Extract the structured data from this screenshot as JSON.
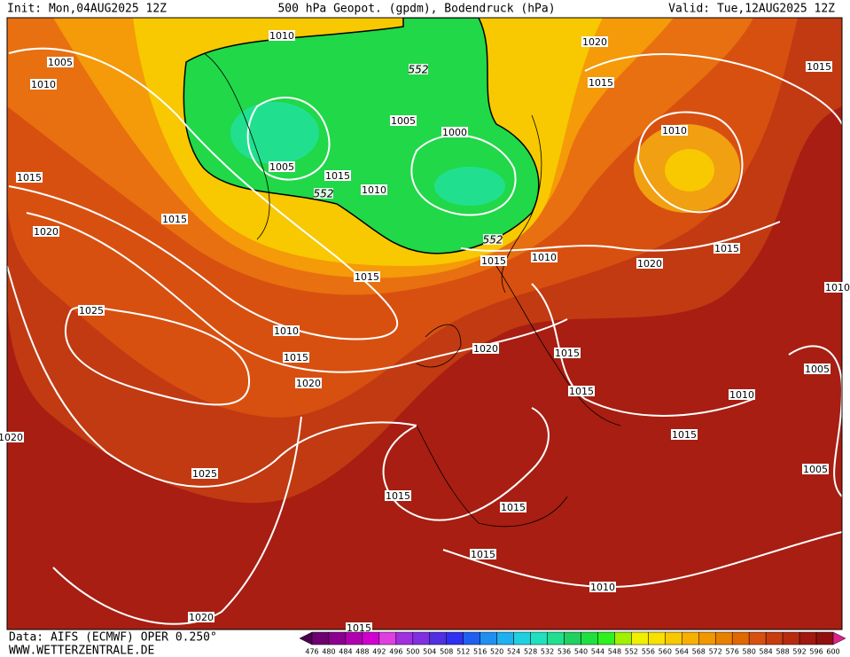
{
  "header": {
    "init": "Init: Mon,04AUG2025 12Z",
    "title": "500 hPa Geopot. (gpdm), Bodendruck (hPa)",
    "valid": "Valid: Tue,12AUG2025 12Z"
  },
  "footer": {
    "data_source": "Data: AIFS (ECMWF) OPER 0.250°",
    "website": "WWW.WETTERZENTRALE.DE"
  },
  "isobar_labels": [
    1010,
    1005,
    1010,
    1020,
    1015,
    1015,
    1005,
    1000,
    1010,
    1005,
    1015,
    1010,
    1015,
    1015,
    1020,
    1015,
    1010,
    1015,
    1020,
    1015,
    1010,
    1025,
    1010,
    1015,
    1020,
    1015,
    1005,
    1020,
    1015,
    1010,
    1015,
    1020,
    1025,
    1005,
    1015,
    1015,
    1015,
    1010,
    1020,
    1015
  ],
  "geopotential_labels": [
    552,
    552,
    552
  ],
  "colorbar": {
    "levels": [
      476,
      480,
      484,
      488,
      492,
      496,
      500,
      504,
      508,
      512,
      516,
      520,
      524,
      528,
      532,
      536,
      540,
      544,
      548,
      552,
      556,
      560,
      564,
      568,
      572,
      576,
      580,
      584,
      588,
      592,
      596,
      600
    ],
    "colors": [
      "#4b0050",
      "#6e0070",
      "#8c0090",
      "#b000b0",
      "#d000d0",
      "#e040e0",
      "#a030e0",
      "#8030e0",
      "#5030e0",
      "#3030f0",
      "#2060f0",
      "#2090f0",
      "#20b0f0",
      "#20d0e0",
      "#20e0c0",
      "#20e090",
      "#20d060",
      "#20e040",
      "#30f020",
      "#a0f000",
      "#f0f000",
      "#f8e000",
      "#f8c800",
      "#f8b000",
      "#f09800",
      "#e88000",
      "#e06800",
      "#d85010",
      "#c83c10",
      "#b82a10",
      "#a01810",
      "#901010",
      "#e0208c"
    ]
  }
}
